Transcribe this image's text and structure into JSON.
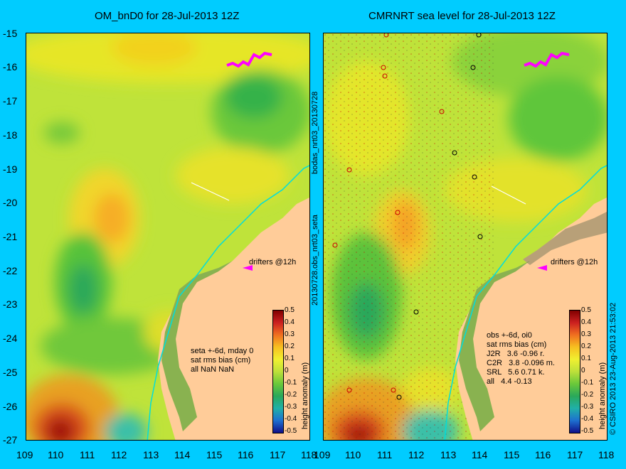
{
  "left": {
    "title": "OM_bnD0 for 28-Jul-2013 12Z",
    "note": [
      "seta +-6d, mday 0",
      "sat rms bias (cm)",
      "all NaN NaN"
    ],
    "drifters": "drifters @12h"
  },
  "right": {
    "title": "CMRNRT sea level  for 28-Jul-2013 12Z",
    "note": [
      "obs +-6d, oi0",
      "sat rms bias (cm)",
      "J2R   3.6 -0.96 r.",
      "C2R   3.8 -0.096 m.",
      "SRL   5.6 0.71 k.",
      "all   4.4 -0.13"
    ],
    "drifters": "drifters @12h"
  },
  "middle_label_top": "bodas_nrt03_20130728",
  "middle_label_bottom": "20130728.obs_nrt03_seta",
  "copyright": "© CSIRO 2013   23-Aug-2013 21:53:02",
  "axes": {
    "y_ticks": [
      "-15",
      "-16",
      "-17",
      "-18",
      "-19",
      "-20",
      "-21",
      "-22",
      "-23",
      "-24",
      "-25",
      "-26",
      "-27"
    ],
    "x_ticks": [
      "109",
      "110",
      "111",
      "112",
      "113",
      "114",
      "115",
      "116",
      "117",
      "118"
    ]
  },
  "colorbar": {
    "label": "height anomaly (m)",
    "ticks": [
      "0.5",
      "0.4",
      "0.3",
      "0.2",
      "0.1",
      "0",
      "-0.1",
      "-0.2",
      "-0.3",
      "-0.4",
      "-0.5"
    ]
  },
  "colors": {
    "background": "#00ccff",
    "land": "#ffcc99",
    "coast": "#00dddd",
    "drifter": "#ff00ff"
  }
}
